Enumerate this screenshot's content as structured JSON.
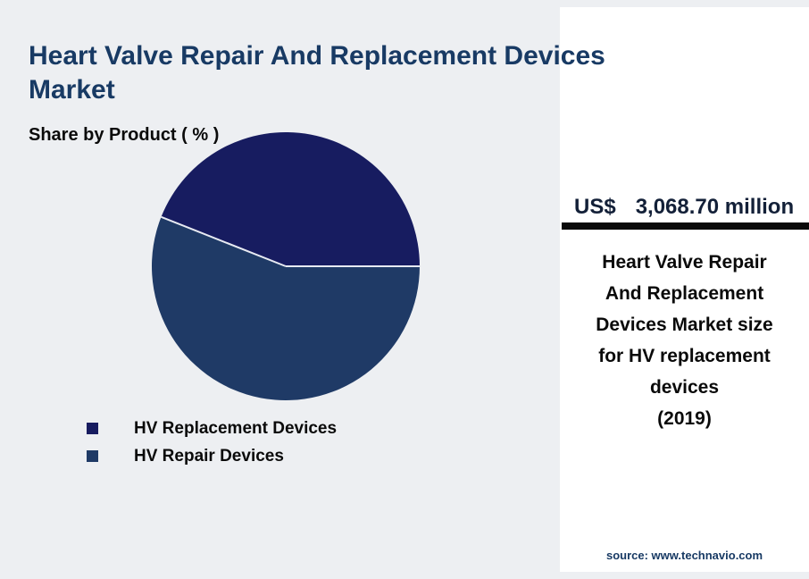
{
  "page": {
    "title": "Heart Valve Repair And Replacement Devices Market",
    "subtitle": "Share by Product ( % )"
  },
  "chart_data": {
    "type": "pie",
    "title": "Share by Product ( % )",
    "unit": "percent",
    "start_angle_deg": 0,
    "direction": "counterclockwise",
    "legend_position": "bottom-left",
    "slices": [
      {
        "label": "HV Replacement Devices",
        "value": 44,
        "color": "#171c60"
      },
      {
        "label": "HV Repair Devices",
        "value": 56,
        "color": "#1f3a66"
      }
    ]
  },
  "callout": {
    "currency": "US$",
    "amount": "3,068.70 million",
    "description": "Heart Valve Repair And Replacement Devices Market size for HV replacement devices",
    "year": "(2019)"
  },
  "footer": {
    "source": "source: www.technavio.com"
  },
  "colors": {
    "background": "#edeff2",
    "panel": "#ffffff",
    "title_text": "#183a64",
    "divider": "#0a0a0a",
    "body_text": "#0a0a0a",
    "wedge_divider": "#e7eaf2"
  }
}
